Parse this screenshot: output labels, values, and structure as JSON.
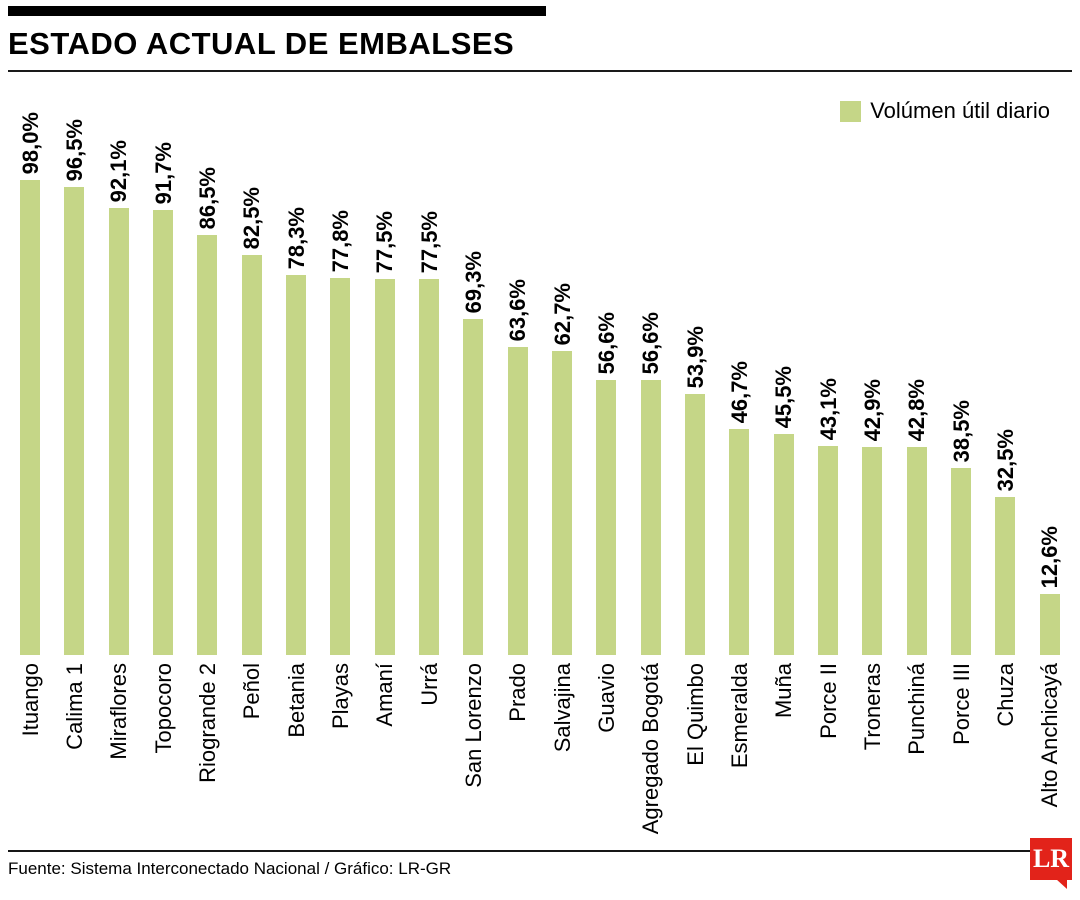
{
  "header": {
    "title": "ESTADO ACTUAL DE EMBALSES"
  },
  "legend": {
    "label": "Volúmen útil diario",
    "color": "#c5d687"
  },
  "chart_data": {
    "type": "bar",
    "title": "ESTADO ACTUAL DE EMBALSES",
    "series_name": "Volúmen útil diario",
    "categories": [
      "Ituango",
      "Calima 1",
      "Miraflores",
      "Topocoro",
      "Riogrande 2",
      "Peñol",
      "Betania",
      "Playas",
      "Amaní",
      "Urrá",
      "San Lorenzo",
      "Prado",
      "Salvajina",
      "Guavio",
      "Agregado Bogotá",
      "El Quimbo",
      "Esmeralda",
      "Muña",
      "Porce II",
      "Troneras",
      "Punchiná",
      "Porce III",
      "Chuza",
      "Alto Anchicayá"
    ],
    "values": [
      98.0,
      96.5,
      92.1,
      91.7,
      86.5,
      82.5,
      78.3,
      77.8,
      77.5,
      77.5,
      69.3,
      63.6,
      62.7,
      56.6,
      56.6,
      53.9,
      46.7,
      45.5,
      43.1,
      42.9,
      42.8,
      38.5,
      32.5,
      12.6
    ],
    "value_labels": [
      "98,0%",
      "96,5%",
      "92,1%",
      "91,7%",
      "86,5%",
      "82,5%",
      "78,3%",
      "77,8%",
      "77,5%",
      "77,5%",
      "69,3%",
      "63,6%",
      "62,7%",
      "56,6%",
      "56,6%",
      "53,9%",
      "46,7%",
      "45,5%",
      "43,1%",
      "42,9%",
      "42,8%",
      "38,5%",
      "32,5%",
      "12,6%"
    ],
    "xlabel": "",
    "ylabel": "",
    "ylim": [
      0,
      100
    ],
    "grid": false,
    "legend_position": "top-right",
    "bar_color": "#c5d687"
  },
  "footer": {
    "source": "Fuente: Sistema Interconectado Nacional / Gráfico: LR-GR",
    "logo_text": "LR"
  }
}
